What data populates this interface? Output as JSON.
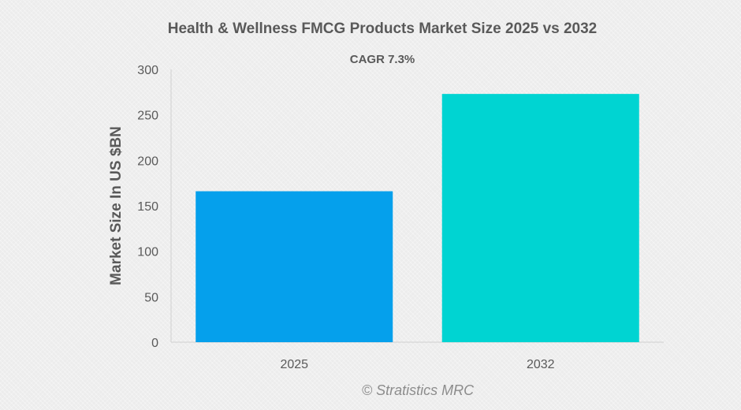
{
  "chart_data": {
    "type": "bar",
    "title": "Health & Wellness FMCG Products Market Size 2025 vs 2032",
    "annotation": "CAGR 7.3%",
    "xlabel": "",
    "ylabel": "Market Size In US $BN",
    "categories": [
      "2025",
      "2032"
    ],
    "values": [
      166,
      273
    ],
    "colors": [
      "#05a0ec",
      "#00d4d2"
    ],
    "ylim": [
      0,
      300
    ],
    "yticks": [
      "0",
      "50",
      "100",
      "150",
      "200",
      "250",
      "300"
    ],
    "grid": false,
    "legend": "none"
  },
  "watermark": "© Stratistics MRC"
}
